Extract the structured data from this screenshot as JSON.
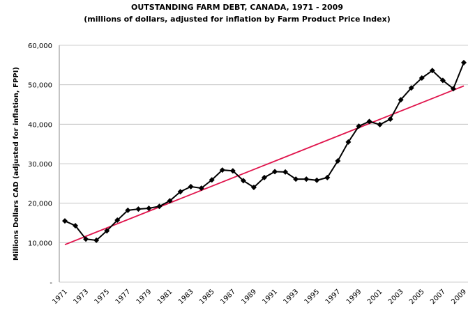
{
  "chart_data": {
    "type": "line",
    "title": "OUTSTANDING FARM DEBT, CANADA, 1971 - 2009",
    "subtitle": "(millions of dollars, adjusted for inflation by Farm Product Price Index)",
    "y_label": "Millions Dollars CAD (adjusted for inflation, FPPI)",
    "categories": [
      "1971",
      null,
      "1973",
      null,
      "1975",
      null,
      "1977",
      null,
      "1979",
      null,
      "1981",
      null,
      "1983",
      null,
      "1985",
      null,
      "1987",
      null,
      "1989",
      null,
      "1991",
      null,
      "1993",
      null,
      "1995",
      null,
      "1997",
      null,
      "1999",
      null,
      "2001",
      null,
      "2003",
      null,
      "2005",
      null,
      "2007",
      null,
      "2009"
    ],
    "series": [
      {
        "color": "#000000",
        "values": [
          15500,
          14300,
          10900,
          10600,
          13000,
          15700,
          18200,
          18500,
          18700,
          19200,
          20600,
          22900,
          24200,
          23800,
          25900,
          28400,
          28200,
          25700,
          24000,
          26500,
          28000,
          27900,
          26100,
          26100,
          25800,
          26500,
          30700,
          35500,
          39500,
          40700,
          39900,
          41300,
          46200,
          49200,
          51700,
          53600,
          51100,
          49000,
          55600
        ]
      }
    ],
    "trend": {
      "color": "#e0144c",
      "start": 9500,
      "end": 49700
    },
    "ylim": [
      0,
      60000
    ],
    "yticks": [
      {
        "value": 0,
        "label": "-"
      },
      {
        "value": 10000,
        "label": "10,000"
      },
      {
        "value": 20000,
        "label": "20,000"
      },
      {
        "value": 30000,
        "label": "30,000"
      },
      {
        "value": 40000,
        "label": "40,000"
      },
      {
        "value": 50000,
        "label": "50,000"
      },
      {
        "value": 60000,
        "label": "60,000"
      }
    ],
    "grid": true
  }
}
